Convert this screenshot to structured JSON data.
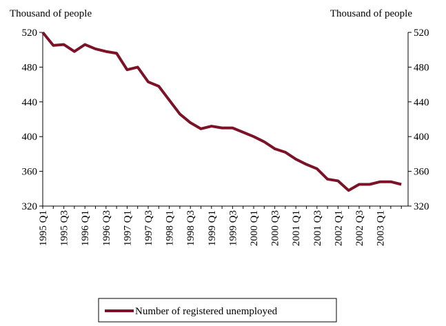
{
  "chart_data": {
    "type": "line",
    "y_label_left": "Thousand of people",
    "y_label_right": "Thousand of people",
    "categories": [
      "1995 Q1",
      null,
      "1995 Q3",
      null,
      "1996 Q1",
      null,
      "1996 Q3",
      null,
      "1997 Q1",
      null,
      "1997 Q3",
      null,
      "1998 Q1",
      null,
      "1998 Q3",
      null,
      "1999 Q1",
      null,
      "1999 Q3",
      null,
      "2000 Q1",
      null,
      "2000 Q3",
      null,
      "2001 Q1",
      null,
      "2001 Q3",
      null,
      "2002 Q1",
      null,
      "2002 Q3",
      null,
      "2003 Q1",
      null,
      null
    ],
    "series": [
      {
        "name": "Number of registered unemployed",
        "color": "#7b1226",
        "values": [
          520,
          505,
          506,
          498,
          506,
          501,
          498,
          496,
          477,
          480,
          463,
          458,
          442,
          426,
          416,
          409,
          412,
          410,
          410,
          405,
          400,
          394,
          386,
          382,
          374,
          368,
          363,
          351,
          349,
          338,
          345,
          345,
          348,
          348,
          345
        ]
      }
    ],
    "ylim": [
      320,
      520
    ],
    "yticks": [
      320,
      360,
      400,
      440,
      480,
      520
    ],
    "y2lim": [
      320,
      520
    ],
    "y2ticks": [
      320,
      360,
      400,
      440,
      480,
      520
    ],
    "legend": "bottom"
  }
}
